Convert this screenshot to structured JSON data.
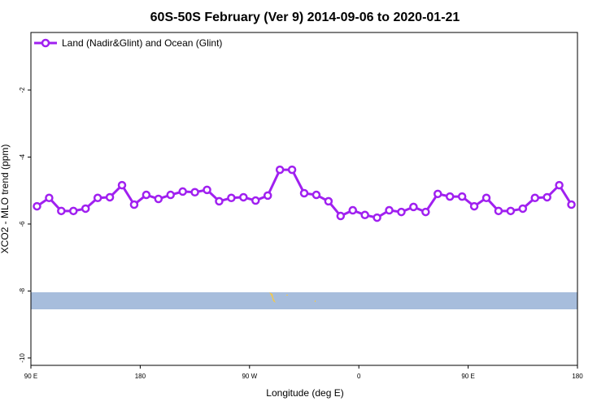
{
  "chart_data": {
    "type": "line",
    "title": "60S-50S February (Ver 9)   2014-09-06 to 2020-01-21",
    "x_label": "Longitude (deg E)",
    "y_label": "XCO2 - MLO trend (ppm)",
    "xlim": [
      90,
      540
    ],
    "xticks": [
      {
        "value": 90,
        "label": "90 E"
      },
      {
        "value": 180,
        "label": "180"
      },
      {
        "value": 270,
        "label": "90 W"
      },
      {
        "value": 360,
        "label": "0"
      },
      {
        "value": 450,
        "label": "90 E"
      },
      {
        "value": 540,
        "label": "180"
      }
    ],
    "ylim": [
      -10.22,
      -0.28
    ],
    "yticks": [
      -10,
      -8,
      -6,
      -4,
      -2
    ],
    "legend": "top-left",
    "x": [
      95,
      105,
      115,
      125,
      135,
      145,
      155,
      165,
      175,
      185,
      195,
      205,
      215,
      225,
      235,
      245,
      255,
      265,
      275,
      285,
      295,
      305,
      315,
      325,
      335,
      345,
      355,
      365,
      375,
      385,
      395,
      405,
      415,
      425,
      435,
      445,
      455,
      465,
      475,
      485,
      495,
      505,
      515,
      525,
      535
    ],
    "series": [
      {
        "name": "Land (Nadir&Glint) and Ocean (Glint)",
        "color": "#a020f0",
        "values": [
          -5.47,
          -5.22,
          -5.61,
          -5.61,
          -5.54,
          -5.22,
          -5.2,
          -4.84,
          -5.42,
          -5.13,
          -5.25,
          -5.13,
          -5.03,
          -5.05,
          -4.98,
          -5.32,
          -5.22,
          -5.2,
          -5.3,
          -5.15,
          -4.38,
          -4.38,
          -5.08,
          -5.13,
          -5.32,
          -5.76,
          -5.59,
          -5.73,
          -5.81,
          -5.59,
          -5.64,
          -5.49,
          -5.64,
          -5.1,
          -5.18,
          -5.18,
          -5.47,
          -5.22,
          -5.61,
          -5.61,
          -5.54,
          -5.22,
          -5.2,
          -4.84,
          -5.42
        ]
      }
    ]
  }
}
